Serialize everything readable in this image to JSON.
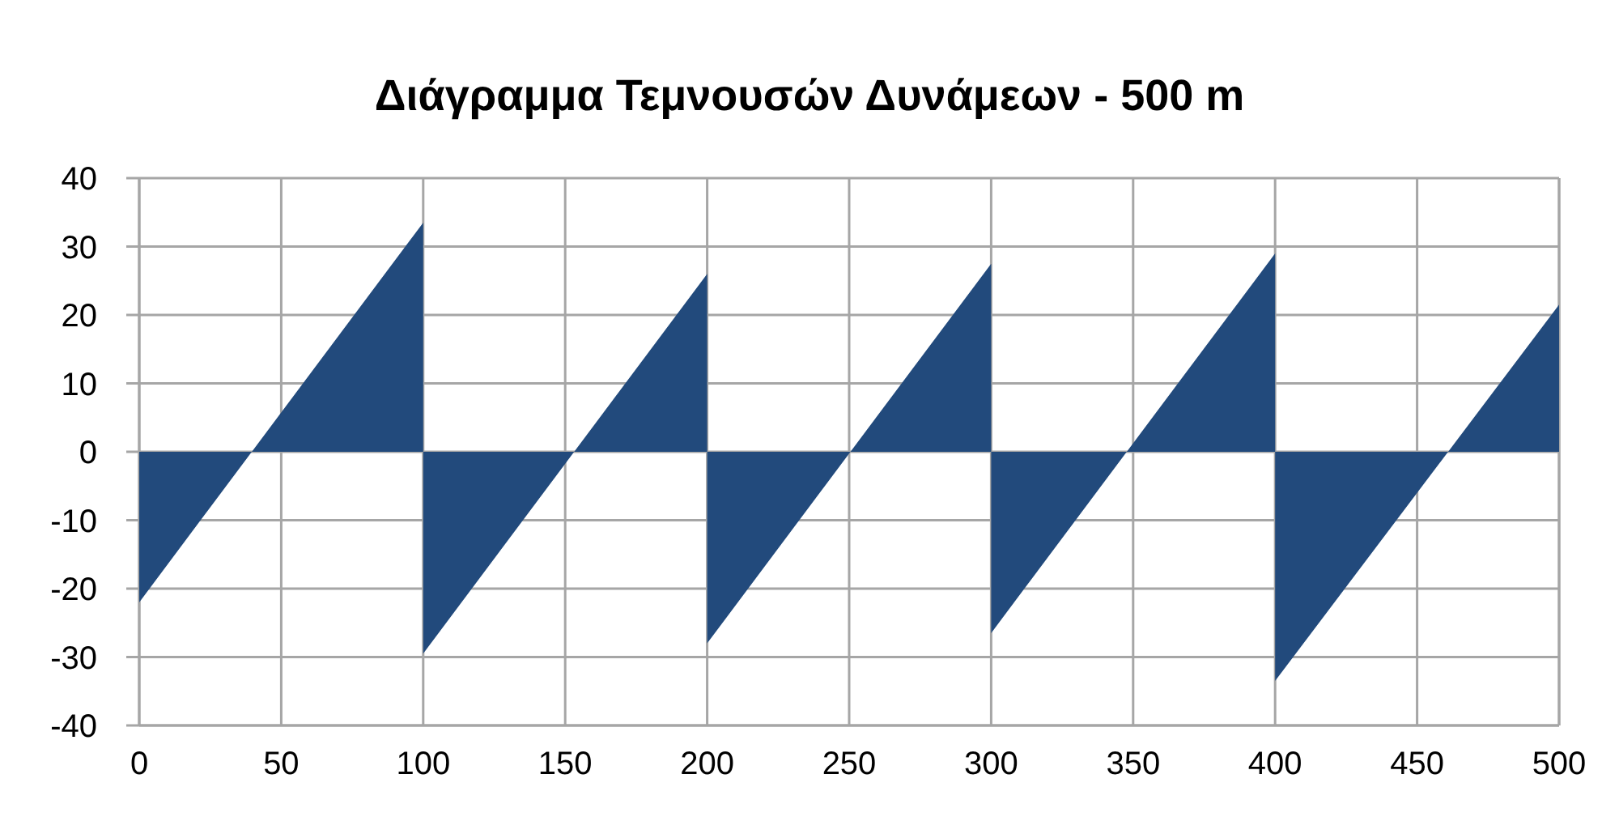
{
  "chart_data": {
    "type": "area",
    "title": "Διάγραμμα Τεμνουσών Δυνάμεων - 500 m",
    "x": [
      0,
      100,
      100,
      200,
      200,
      300,
      300,
      400,
      400,
      500
    ],
    "series": [
      {
        "color": "#224a7c",
        "values": [
          -22,
          33.5,
          -29.5,
          26,
          -28,
          27.5,
          -26.5,
          29,
          -33.5,
          21.5
        ]
      }
    ],
    "xlim": [
      0,
      500
    ],
    "xticks": [
      0,
      50,
      100,
      150,
      200,
      250,
      300,
      350,
      400,
      450,
      500
    ],
    "ylim": [
      -40,
      40
    ],
    "yticks": [
      -40,
      -30,
      -20,
      -10,
      0,
      10,
      20,
      30,
      40
    ],
    "grid": true
  }
}
